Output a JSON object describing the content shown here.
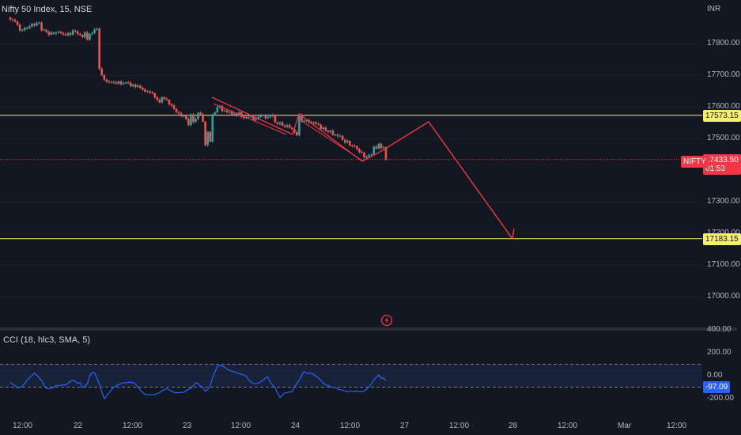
{
  "header": {
    "symbol_title": "Nifty 50 Index, 15, NSE",
    "currency": "INR"
  },
  "price_axis": {
    "ticks": [
      "17800.00",
      "17700.00",
      "17600.00",
      "17500.00",
      "17300.00",
      "17200.00",
      "17100.00",
      "17000.00"
    ],
    "tick_values": [
      17800,
      17700,
      17600,
      17500,
      17300,
      17200,
      17100,
      17000
    ]
  },
  "levels": {
    "upper": {
      "value": 17573.15,
      "label": "17573.15"
    },
    "lower": {
      "value": 17183.15,
      "label": "17183.15"
    },
    "last_price": {
      "value": 17433.5,
      "label": "17433.50",
      "countdown": "01:53",
      "symbol": "NIFTY"
    }
  },
  "cci": {
    "title": "CCI (18, hlc3, SMA, 5)",
    "ticks": [
      "400.00",
      "200.00",
      "0.00",
      "-200.00"
    ],
    "tick_values": [
      400,
      200,
      0,
      -200
    ],
    "current": {
      "value": -97.09,
      "label": "-97.09"
    },
    "band_upper": 100,
    "band_lower": -100
  },
  "time_axis": {
    "labels": [
      "12:00",
      "22",
      "12:00",
      "23",
      "12:00",
      "24",
      "12:00",
      "27",
      "12:00",
      "28",
      "12:00",
      "Mar",
      "12:00"
    ]
  },
  "colors": {
    "background": "#131722",
    "up": "#26a69a",
    "down": "#ef5350",
    "level_line": "#f7f06b",
    "drawing": "#f23645",
    "cci_line": "#2962ff"
  },
  "icons": {
    "bolt": "lightning-bolt-icon"
  },
  "series": {
    "closes": [
      17876,
      17874,
      17869,
      17859,
      17841,
      17842,
      17850,
      17848,
      17854,
      17862,
      17857,
      17865,
      17866,
      17842,
      17843,
      17837,
      17828,
      17835,
      17831,
      17834,
      17837,
      17833,
      17829,
      17826,
      17833,
      17828,
      17841,
      17838,
      17830,
      17827,
      17820,
      17835,
      17812,
      17830,
      17833,
      17844,
      17847,
      17720,
      17700,
      17686,
      17680,
      17677,
      17679,
      17677,
      17673,
      17680,
      17672,
      17675,
      17677,
      17676,
      17665,
      17670,
      17663,
      17667,
      17660,
      17655,
      17648,
      17649,
      17645,
      17643,
      17630,
      17622,
      17614,
      17630,
      17625,
      17622,
      17608,
      17604,
      17593,
      17583,
      17579,
      17570,
      17572,
      17562,
      17542,
      17576,
      17552,
      17562,
      17581,
      17576,
      17553,
      17479,
      17520,
      17490,
      17576,
      17582,
      17598,
      17602,
      17587,
      17588,
      17583,
      17584,
      17575,
      17578,
      17573,
      17582,
      17568,
      17564,
      17568,
      17569,
      17570,
      17558,
      17562,
      17568,
      17572,
      17574,
      17564,
      17567,
      17575,
      17571,
      17551,
      17546,
      17550,
      17541,
      17537,
      17542,
      17534,
      17530,
      17520,
      17510,
      17575,
      17555,
      17555,
      17558,
      17551,
      17548,
      17551,
      17547,
      17543,
      17530,
      17534,
      17524,
      17520,
      17524,
      17511,
      17512,
      17507,
      17508,
      17496,
      17487,
      17492,
      17478,
      17476,
      17475,
      17466,
      17457,
      17455,
      17440,
      17442,
      17447,
      17450,
      17474,
      17468,
      17483,
      17470,
      17472,
      17434
    ]
  }
}
